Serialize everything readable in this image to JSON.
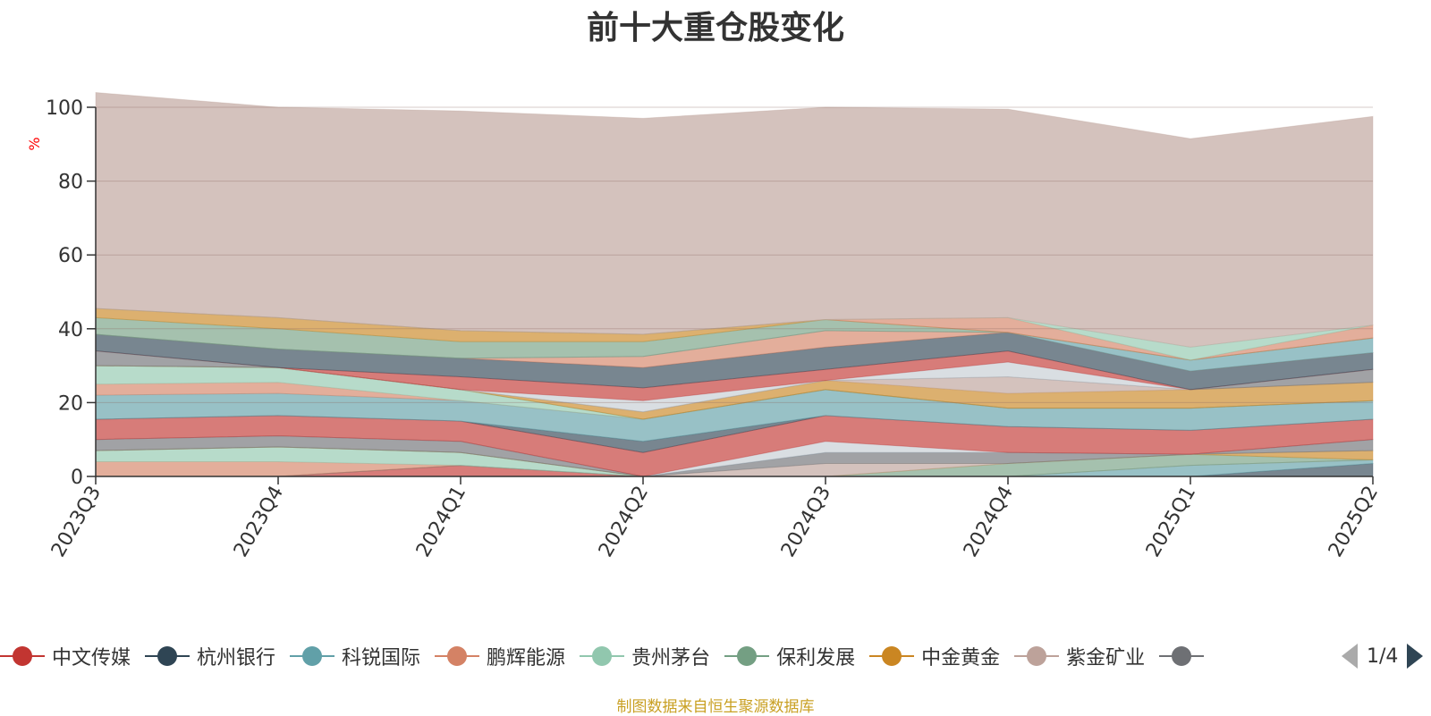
{
  "chart_data": {
    "type": "area",
    "stacked": true,
    "title": "前十大重仓股变化",
    "ylabel": "%",
    "ylim": [
      0,
      100
    ],
    "yticks": [
      0,
      20,
      40,
      60,
      80,
      100
    ],
    "categories": [
      "2023Q3",
      "2023Q4",
      "2024Q1",
      "2024Q2",
      "2024Q3",
      "2024Q4",
      "2025Q1",
      "2025Q2"
    ],
    "grid": true,
    "legend_position": "bottom",
    "series": [
      {
        "name": "中文传媒",
        "color": "#c23531",
        "values": [
          0.0,
          0.0,
          3.0,
          0.0,
          0.0,
          0.0,
          0.0,
          0.0
        ]
      },
      {
        "name": "杭州银行",
        "color": "#2f4554",
        "values": [
          0.0,
          0.0,
          0.0,
          0.0,
          0.0,
          0.0,
          0.0,
          3.5
        ]
      },
      {
        "name": "科锐国际",
        "color": "#61a0a8",
        "values": [
          0.0,
          0.0,
          0.0,
          0.0,
          0.0,
          0.0,
          3.0,
          1.0
        ]
      },
      {
        "name": "鹏辉能源",
        "color": "#d48265",
        "values": [
          4.0,
          4.0,
          0.0,
          0.0,
          0.0,
          0.0,
          0.0,
          0.0
        ]
      },
      {
        "name": "贵州茅台",
        "color": "#91c7ae",
        "values": [
          3.0,
          4.0,
          3.5,
          0.0,
          0.0,
          0.0,
          0.0,
          0.0
        ]
      },
      {
        "name": "保利发展",
        "color": "#749f83",
        "values": [
          0.0,
          0.0,
          0.0,
          0.0,
          0.0,
          3.5,
          3.0,
          0.0
        ]
      },
      {
        "name": "中金黄金",
        "color": "#ca8622",
        "values": [
          0.0,
          0.0,
          0.0,
          0.0,
          0.0,
          0.0,
          0.0,
          2.5
        ]
      },
      {
        "name": "紫金矿业",
        "color": "#bda29a",
        "values": [
          0.0,
          0.0,
          0.0,
          0.0,
          3.5,
          0.0,
          0.0,
          0.0
        ]
      },
      {
        "name": "",
        "color": "#6e7074",
        "values": [
          3.0,
          3.0,
          3.0,
          0.0,
          3.0,
          3.0,
          0.0,
          3.0
        ]
      },
      {
        "name": "",
        "color": "#546570",
        "values": [
          0.0,
          0.0,
          0.0,
          0.0,
          0.0,
          0.0,
          0.0,
          0.0
        ]
      },
      {
        "name": "",
        "color": "#c4ccd3",
        "values": [
          0.0,
          0.0,
          0.0,
          0.0,
          3.0,
          0.0,
          0.0,
          0.0
        ]
      },
      {
        "name": "",
        "color": "#c23531",
        "values": [
          5.5,
          5.5,
          5.5,
          6.5,
          7.0,
          7.0,
          6.5,
          5.5
        ]
      },
      {
        "name": "",
        "color": "#2f4554",
        "values": [
          0.0,
          0.0,
          0.0,
          3.0,
          0.0,
          0.0,
          0.0,
          0.0
        ]
      },
      {
        "name": "",
        "color": "#61a0a8",
        "values": [
          6.5,
          6.0,
          5.5,
          6.0,
          7.0,
          5.0,
          6.0,
          5.0
        ]
      },
      {
        "name": "",
        "color": "#d48265",
        "values": [
          3.0,
          3.0,
          0.0,
          0.0,
          0.0,
          0.0,
          0.0,
          0.0
        ]
      },
      {
        "name": "",
        "color": "#91c7ae",
        "values": [
          5.0,
          4.0,
          3.0,
          0.0,
          0.0,
          0.0,
          0.0,
          0.0
        ]
      },
      {
        "name": "",
        "color": "#749f83",
        "values": [
          0.0,
          0.0,
          0.0,
          0.0,
          0.0,
          0.0,
          0.0,
          0.0
        ]
      },
      {
        "name": "",
        "color": "#ca8622",
        "values": [
          0.0,
          0.0,
          0.0,
          2.0,
          2.5,
          4.0,
          5.0,
          5.0
        ]
      },
      {
        "name": "",
        "color": "#bda29a",
        "values": [
          0.0,
          0.0,
          0.0,
          0.0,
          0.0,
          4.5,
          0.0,
          0.0
        ]
      },
      {
        "name": "",
        "color": "#6e7074",
        "values": [
          4.0,
          0.0,
          0.0,
          0.0,
          0.0,
          0.0,
          0.0,
          3.5
        ]
      },
      {
        "name": "",
        "color": "#c4ccd3",
        "values": [
          0.0,
          0.0,
          0.0,
          3.0,
          0.0,
          4.0,
          0.0,
          0.0
        ]
      },
      {
        "name": "",
        "color": "#c23531",
        "values": [
          0.0,
          0.0,
          3.5,
          3.5,
          3.0,
          3.0,
          0.0,
          0.0
        ]
      },
      {
        "name": "",
        "color": "#2f4554",
        "values": [
          4.5,
          5.0,
          5.0,
          5.5,
          6.0,
          5.0,
          5.0,
          4.5
        ]
      },
      {
        "name": "",
        "color": "#d48265",
        "values": [
          0.0,
          0.0,
          0.0,
          3.0,
          4.5,
          0.0,
          0.0,
          0.0
        ]
      },
      {
        "name": "",
        "color": "#61a0a8",
        "values": [
          0.0,
          0.0,
          0.0,
          0.0,
          0.0,
          0.0,
          3.0,
          4.0
        ]
      },
      {
        "name": "",
        "color": "#749f83",
        "values": [
          4.5,
          5.5,
          4.5,
          4.0,
          3.0,
          0.0,
          0.0,
          0.0
        ]
      },
      {
        "name": "",
        "color": "#ca8622",
        "values": [
          2.5,
          3.0,
          3.0,
          2.0,
          0.0,
          0.0,
          0.0,
          0.0
        ]
      },
      {
        "name": "",
        "color": "#d48265",
        "values": [
          0.0,
          0.0,
          0.0,
          0.0,
          0.0,
          4.0,
          0.0,
          3.5
        ]
      },
      {
        "name": "",
        "color": "#91c7ae",
        "values": [
          0.0,
          0.0,
          0.0,
          0.0,
          0.0,
          0.0,
          3.5,
          0.0
        ]
      },
      {
        "name": "",
        "color": "#bda29a",
        "values": [
          58.5,
          57.0,
          59.5,
          58.5,
          57.5,
          56.5,
          56.5,
          56.5
        ]
      }
    ]
  },
  "legend": {
    "items": [
      {
        "label": "中文传媒",
        "color": "#c23531"
      },
      {
        "label": "杭州银行",
        "color": "#2f4554"
      },
      {
        "label": "科锐国际",
        "color": "#61a0a8"
      },
      {
        "label": "鹏辉能源",
        "color": "#d48265"
      },
      {
        "label": "贵州茅台",
        "color": "#91c7ae"
      },
      {
        "label": "保利发展",
        "color": "#749f83"
      },
      {
        "label": "中金黄金",
        "color": "#ca8622"
      },
      {
        "label": "紫金矿业",
        "color": "#bda29a"
      },
      {
        "label": "",
        "color": "#6e7074"
      }
    ],
    "page_indicator": "1/4"
  },
  "footer": {
    "source": "制图数据来自恒生聚源数据库"
  }
}
